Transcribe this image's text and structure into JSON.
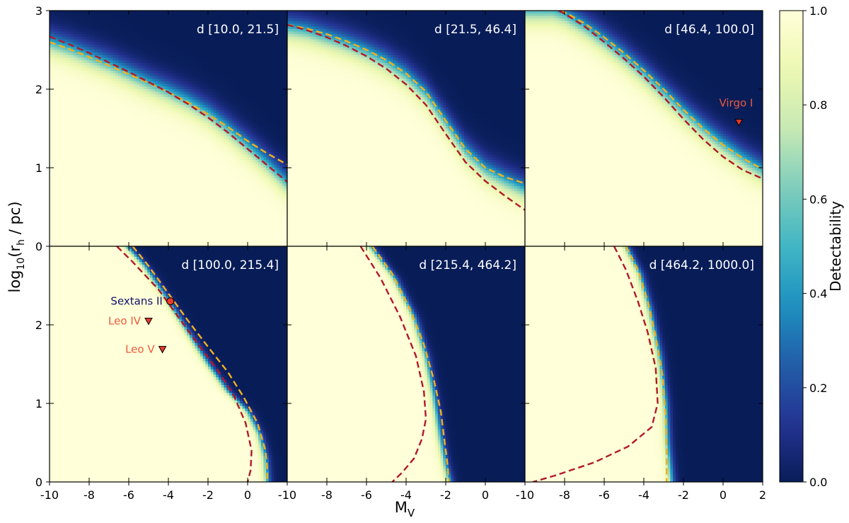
{
  "chart_data": {
    "type": "heatmap",
    "xlabel": "M",
    "xlabel_sub": "V",
    "ylabel_pre": "log",
    "ylabel_sub10": "10",
    "ylabel_mid": "(r",
    "ylabel_subh": "h",
    "ylabel_post": " / pc)",
    "colorbar": {
      "label": "Detectability",
      "ticks": [
        0.0,
        0.2,
        0.4,
        0.6,
        0.8,
        1.0
      ],
      "tick_labels": [
        "0.0",
        "0.2",
        "0.4",
        "0.6",
        "0.8",
        "1.0"
      ],
      "colormap": "YlGnBu"
    },
    "xlim": [
      -10,
      2
    ],
    "ylim": [
      0,
      3
    ],
    "x_ticks_bottom": [
      {
        "value": -10,
        "label": "-10"
      },
      {
        "value": -8,
        "label": "-8"
      },
      {
        "value": -6,
        "label": "-6"
      },
      {
        "value": -4,
        "label": "-4"
      },
      {
        "value": -2,
        "label": "-2"
      },
      {
        "value": 0,
        "label": "0"
      }
    ],
    "x_ticks_last": [
      {
        "value": -10,
        "label": "-10"
      },
      {
        "value": -8,
        "label": "-8"
      },
      {
        "value": -6,
        "label": "-6"
      },
      {
        "value": -4,
        "label": "-4"
      },
      {
        "value": -2,
        "label": "-2"
      },
      {
        "value": 0,
        "label": "0"
      },
      {
        "value": 2,
        "label": "2"
      }
    ],
    "y_ticks_top": [
      {
        "value": 0,
        "label": "0"
      },
      {
        "value": 1,
        "label": "1"
      },
      {
        "value": 2,
        "label": "2"
      },
      {
        "value": 3,
        "label": "3"
      }
    ],
    "y_ticks_bottom": [
      {
        "value": 0,
        "label": "0"
      },
      {
        "value": 1,
        "label": "1"
      },
      {
        "value": 2,
        "label": "2"
      }
    ],
    "line_colors": {
      "red": "#b2182b",
      "yellow": "#f2b01e"
    },
    "panels": [
      {
        "label": "d [10.0, 21.5]",
        "boundary": [
          [
            -10,
            2.6
          ],
          [
            -9,
            2.52
          ],
          [
            -8,
            2.42
          ],
          [
            -7,
            2.32
          ],
          [
            -6,
            2.2
          ],
          [
            -5,
            2.08
          ],
          [
            -4,
            1.97
          ],
          [
            -3,
            1.85
          ],
          [
            -2,
            1.7
          ],
          [
            -1,
            1.5
          ],
          [
            0,
            1.28
          ],
          [
            1,
            1.05
          ],
          [
            2,
            0.8
          ]
        ],
        "width": 0.4,
        "red_curve": [
          [
            -10,
            2.67
          ],
          [
            -9,
            2.57
          ],
          [
            -8,
            2.46
          ],
          [
            -7,
            2.34
          ],
          [
            -6,
            2.22
          ],
          [
            -5,
            2.09
          ],
          [
            -4,
            1.96
          ],
          [
            -3,
            1.81
          ],
          [
            -2,
            1.64
          ],
          [
            -1,
            1.45
          ],
          [
            0,
            1.24
          ],
          [
            1,
            1.03
          ],
          [
            2,
            0.82
          ]
        ],
        "yellow_curve": [
          [
            -10,
            2.6
          ],
          [
            -9,
            2.51
          ],
          [
            -8,
            2.41
          ],
          [
            -7,
            2.3
          ],
          [
            -6,
            2.19
          ],
          [
            -5,
            2.08
          ],
          [
            -4,
            1.96
          ],
          [
            -3,
            1.83
          ],
          [
            -2,
            1.68
          ],
          [
            -1,
            1.52
          ],
          [
            0,
            1.34
          ],
          [
            1,
            1.18
          ],
          [
            2,
            1.04
          ]
        ],
        "markers": []
      },
      {
        "label": "d [21.5, 46.4]",
        "boundary": [
          [
            -10,
            2.78
          ],
          [
            -9,
            2.74
          ],
          [
            -8,
            2.66
          ],
          [
            -7,
            2.58
          ],
          [
            -6,
            2.48
          ],
          [
            -5,
            2.35
          ],
          [
            -4,
            2.18
          ],
          [
            -3,
            1.94
          ],
          [
            -2,
            1.58
          ],
          [
            -1,
            1.22
          ],
          [
            0,
            0.98
          ],
          [
            1,
            0.84
          ],
          [
            2,
            0.72
          ]
        ],
        "width": 0.4,
        "red_curve": [
          [
            -10,
            2.82
          ],
          [
            -9,
            2.75
          ],
          [
            -8,
            2.66
          ],
          [
            -7,
            2.55
          ],
          [
            -6,
            2.42
          ],
          [
            -5,
            2.26
          ],
          [
            -4,
            2.06
          ],
          [
            -3,
            1.8
          ],
          [
            -2,
            1.43
          ],
          [
            -1,
            1.07
          ],
          [
            0,
            0.83
          ],
          [
            1,
            0.64
          ],
          [
            2,
            0.46
          ]
        ],
        "yellow_curve": [
          [
            -10,
            2.82
          ],
          [
            -9,
            2.77
          ],
          [
            -8,
            2.7
          ],
          [
            -7,
            2.61
          ],
          [
            -6,
            2.5
          ],
          [
            -5,
            2.37
          ],
          [
            -4,
            2.2
          ],
          [
            -3,
            1.97
          ],
          [
            -2,
            1.6
          ],
          [
            -1,
            1.24
          ],
          [
            0,
            1.0
          ],
          [
            1,
            0.88
          ],
          [
            2,
            0.8
          ]
        ],
        "markers": []
      },
      {
        "label": "d [46.4, 100.0]",
        "boundary": [
          [
            -8.6,
            3.0
          ],
          [
            -8,
            2.95
          ],
          [
            -7,
            2.8
          ],
          [
            -6,
            2.62
          ],
          [
            -5,
            2.42
          ],
          [
            -4,
            2.2
          ],
          [
            -3,
            1.96
          ],
          [
            -2,
            1.72
          ],
          [
            -1,
            1.5
          ],
          [
            0,
            1.3
          ],
          [
            1,
            1.12
          ],
          [
            2,
            0.96
          ]
        ],
        "width": 0.4,
        "red_curve": [
          [
            -8.3,
            3.0
          ],
          [
            -8,
            2.96
          ],
          [
            -7,
            2.8
          ],
          [
            -6,
            2.6
          ],
          [
            -5,
            2.39
          ],
          [
            -4,
            2.16
          ],
          [
            -3,
            1.9
          ],
          [
            -2,
            1.62
          ],
          [
            -1,
            1.36
          ],
          [
            0,
            1.14
          ],
          [
            1,
            0.97
          ],
          [
            2,
            0.86
          ]
        ],
        "yellow_curve": [
          [
            -8.2,
            3.0
          ],
          [
            -8,
            2.98
          ],
          [
            -7,
            2.84
          ],
          [
            -6,
            2.66
          ],
          [
            -5,
            2.46
          ],
          [
            -4,
            2.24
          ],
          [
            -3,
            2.0
          ],
          [
            -2,
            1.74
          ],
          [
            -1,
            1.5
          ],
          [
            0,
            1.29
          ],
          [
            1,
            1.12
          ],
          [
            2,
            0.98
          ]
        ],
        "markers": [
          {
            "name": "Virgo I",
            "x": 0.8,
            "y": 1.58,
            "shape": "triangle",
            "label_color": "#ec5a3e",
            "label_pos": "above-left"
          }
        ]
      },
      {
        "label": "d [100.0, 215.4]",
        "boundary": [
          [
            -6.1,
            3.0
          ],
          [
            -5.2,
            2.75
          ],
          [
            -4,
            2.3
          ],
          [
            -3,
            1.9
          ],
          [
            -2,
            1.5
          ],
          [
            -1,
            1.15
          ],
          [
            0,
            0.9
          ],
          [
            0.6,
            0.6
          ],
          [
            0.9,
            0.3
          ],
          [
            1.0,
            0.0
          ]
        ],
        "width": 0.5,
        "red_curve": [
          [
            -6.6,
            3.0
          ],
          [
            -5.8,
            2.8
          ],
          [
            -4.5,
            2.45
          ],
          [
            -3.5,
            2.1
          ],
          [
            -2.5,
            1.75
          ],
          [
            -1.5,
            1.42
          ],
          [
            -0.7,
            1.1
          ],
          [
            -0.1,
            0.75
          ],
          [
            0.2,
            0.4
          ],
          [
            0.15,
            0.15
          ],
          [
            0.0,
            0.0
          ]
        ],
        "yellow_curve": [
          [
            -5.8,
            3.0
          ],
          [
            -5.0,
            2.75
          ],
          [
            -4.0,
            2.4
          ],
          [
            -3.0,
            2.05
          ],
          [
            -2.0,
            1.72
          ],
          [
            -1.0,
            1.4
          ],
          [
            -0.2,
            1.08
          ],
          [
            0.5,
            0.75
          ],
          [
            0.9,
            0.4
          ],
          [
            1.0,
            0.15
          ],
          [
            1.0,
            0.0
          ]
        ],
        "markers": [
          {
            "name": "Sextans II",
            "x": -3.9,
            "y": 2.3,
            "shape": "circle",
            "label_color": "#10106b",
            "label_pos": "left"
          },
          {
            "name": "Leo IV",
            "x": -5.0,
            "y": 2.05,
            "shape": "triangle",
            "label_color": "#ec5a3e",
            "label_pos": "left"
          },
          {
            "name": "Leo V",
            "x": -4.3,
            "y": 1.69,
            "shape": "triangle",
            "label_color": "#ec5a3e",
            "label_pos": "left"
          }
        ]
      },
      {
        "label": "d [215.4, 464.2]",
        "boundary": [
          [
            -5.8,
            3.0
          ],
          [
            -4.6,
            2.6
          ],
          [
            -3.6,
            2.1
          ],
          [
            -3.0,
            1.6
          ],
          [
            -2.6,
            1.1
          ],
          [
            -2.3,
            0.6
          ],
          [
            -2.0,
            0.2
          ],
          [
            -1.8,
            0.0
          ]
        ],
        "width": 0.5,
        "red_curve": [
          [
            -6.3,
            3.0
          ],
          [
            -5.3,
            2.6
          ],
          [
            -4.3,
            2.1
          ],
          [
            -3.5,
            1.6
          ],
          [
            -3.1,
            1.15
          ],
          [
            -3.0,
            0.8
          ],
          [
            -3.2,
            0.55
          ],
          [
            -3.6,
            0.3
          ],
          [
            -4.2,
            0.12
          ],
          [
            -4.7,
            0.0
          ]
        ],
        "yellow_curve": [
          [
            -5.7,
            3.0
          ],
          [
            -4.7,
            2.65
          ],
          [
            -3.8,
            2.2
          ],
          [
            -3.1,
            1.75
          ],
          [
            -2.6,
            1.3
          ],
          [
            -2.25,
            0.9
          ],
          [
            -2.05,
            0.5
          ],
          [
            -1.9,
            0.2
          ],
          [
            -1.85,
            0.0
          ]
        ],
        "markers": []
      },
      {
        "label": "d [464.2, 1000.0]",
        "boundary": [
          [
            -4.9,
            3.0
          ],
          [
            -4.2,
            2.65
          ],
          [
            -3.7,
            2.2
          ],
          [
            -3.2,
            1.6
          ],
          [
            -2.9,
            1.0
          ],
          [
            -2.8,
            0.5
          ],
          [
            -2.6,
            0.0
          ]
        ],
        "width": 0.5,
        "red_curve": [
          [
            -5.5,
            3.0
          ],
          [
            -4.9,
            2.7
          ],
          [
            -4.3,
            2.3
          ],
          [
            -3.8,
            1.9
          ],
          [
            -3.4,
            1.45
          ],
          [
            -3.3,
            1.0
          ],
          [
            -3.6,
            0.7
          ],
          [
            -4.8,
            0.45
          ],
          [
            -6.5,
            0.25
          ],
          [
            -8.5,
            0.08
          ],
          [
            -9.6,
            0.0
          ]
        ],
        "yellow_curve": [
          [
            -4.9,
            3.0
          ],
          [
            -4.3,
            2.7
          ],
          [
            -3.8,
            2.3
          ],
          [
            -3.4,
            1.85
          ],
          [
            -3.05,
            1.35
          ],
          [
            -2.9,
            0.85
          ],
          [
            -2.85,
            0.4
          ],
          [
            -2.85,
            0.0
          ]
        ],
        "markers": []
      }
    ]
  }
}
